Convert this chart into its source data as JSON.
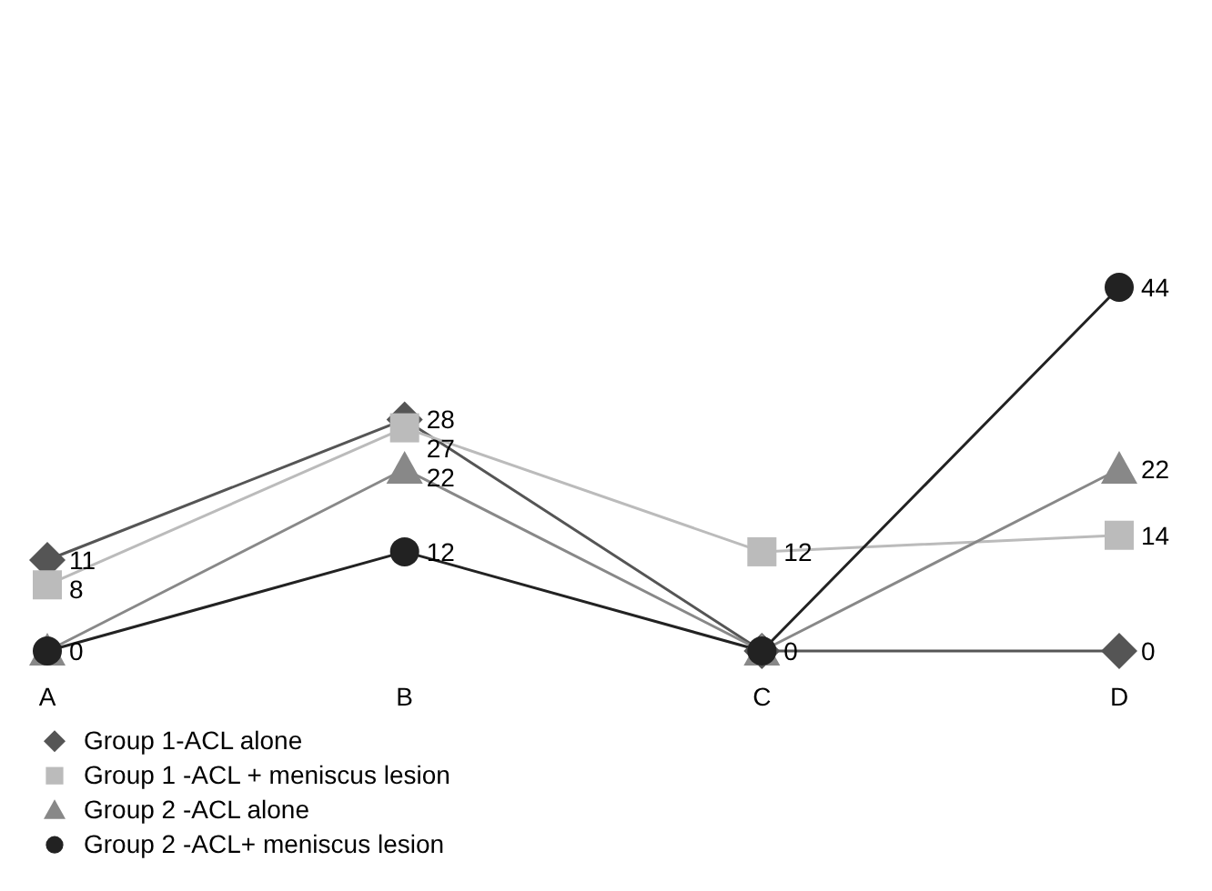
{
  "chart_data": {
    "type": "line",
    "categories": [
      "A",
      "B",
      "C",
      "D"
    ],
    "legend": "bottom left",
    "series": [
      {
        "name": "Group 1-ACL alone",
        "color": "#555555",
        "marker": "diamond",
        "values": [
          11,
          28,
          0,
          0
        ],
        "value_labels": [
          "11",
          "28",
          "0",
          "0"
        ]
      },
      {
        "name": "Group 1 -ACL + meniscus lesion",
        "color": "#bbbbbb",
        "marker": "square",
        "values": [
          8,
          27,
          12,
          14
        ],
        "value_labels": [
          "8",
          "27",
          "12",
          "14"
        ]
      },
      {
        "name": "Group 2 -ACL alone",
        "color": "#888888",
        "marker": "triangle",
        "values": [
          0,
          22,
          0,
          22
        ],
        "value_labels": [
          "0",
          "22",
          null,
          "22"
        ]
      },
      {
        "name": "Group 2 -ACL+ meniscus lesion",
        "color": "#222222",
        "marker": "circle",
        "values": [
          0,
          12,
          0,
          44
        ],
        "value_labels": [
          null,
          "12",
          null,
          "44"
        ]
      }
    ]
  }
}
